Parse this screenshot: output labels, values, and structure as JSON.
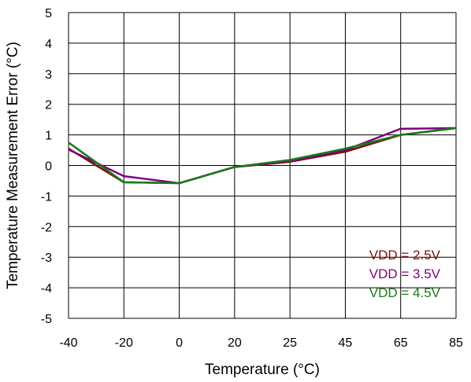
{
  "chart_data": {
    "type": "line",
    "title": "",
    "xlabel": "Temperature (°C)",
    "ylabel": "Temperature Measurement Error (°C)",
    "categories": [
      "-40",
      "-20",
      "0",
      "20",
      "25",
      "45",
      "65",
      "85"
    ],
    "ylim": [
      -5,
      5
    ],
    "yticks": [
      "5",
      "4",
      "3",
      "2",
      "1",
      "0",
      "-1",
      "-2",
      "-3",
      "-4",
      "-5"
    ],
    "grid": true,
    "legend_position": "bottom-right",
    "series": [
      {
        "name": "VDD = 2.5V",
        "color": "#7b1010",
        "values": [
          0.55,
          -0.55,
          -0.58,
          -0.05,
          0.12,
          0.45,
          1.0,
          1.22
        ]
      },
      {
        "name": "VDD = 3.5V",
        "color": "#800080",
        "values": [
          0.52,
          -0.35,
          -0.58,
          -0.05,
          0.15,
          0.5,
          1.2,
          1.22
        ]
      },
      {
        "name": "VDD = 4.5V",
        "color": "#1a7a1a",
        "values": [
          0.75,
          -0.55,
          -0.58,
          -0.05,
          0.18,
          0.55,
          1.0,
          1.22
        ]
      }
    ]
  }
}
